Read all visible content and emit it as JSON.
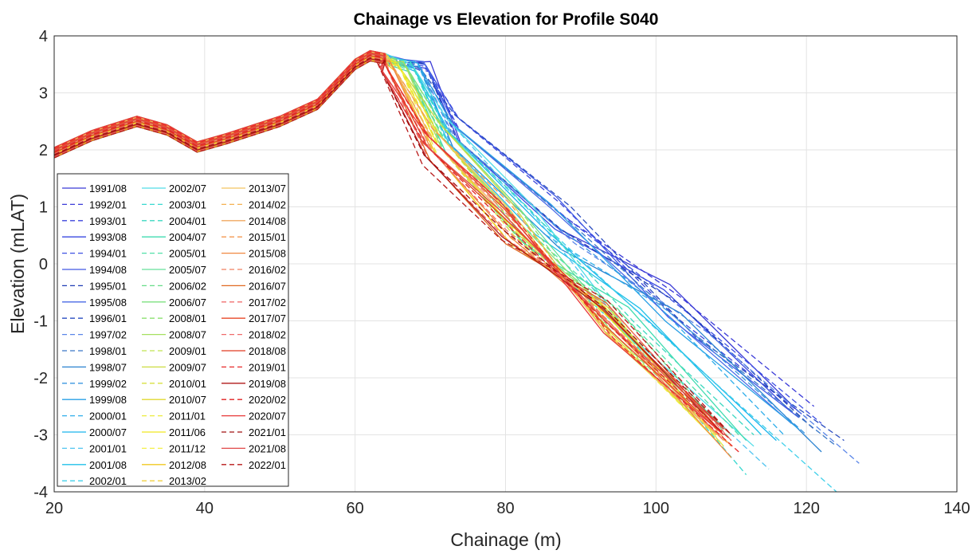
{
  "chart_data": {
    "type": "line",
    "title": "Chainage vs Elevation for Profile S040",
    "xlabel": "Chainage (m)",
    "ylabel": "Elevation (mLAT)",
    "xlim": [
      20,
      140
    ],
    "ylim": [
      -4,
      4
    ],
    "xticks": [
      "20",
      "40",
      "60",
      "80",
      "100",
      "120",
      "140"
    ],
    "yticks": [
      "4",
      "3",
      "2",
      "1",
      "0",
      "-1",
      "-2",
      "-3",
      "-4"
    ],
    "grid": true,
    "legend_position": "bottom-left",
    "legend_columns": 3,
    "series": [
      {
        "name": "1991/08",
        "color": "#3a3ad6",
        "dash": "solid",
        "end": [
          119,
          -2.6
        ]
      },
      {
        "name": "1992/01",
        "color": "#3b3bd8",
        "dash": "dashed",
        "end": [
          121,
          -2.5
        ]
      },
      {
        "name": "1993/01",
        "color": "#3c46dc",
        "dash": "dashed",
        "end": [
          120,
          -2.7
        ]
      },
      {
        "name": "1993/08",
        "color": "#3a48e0",
        "dash": "solid",
        "end": [
          118,
          -2.6
        ]
      },
      {
        "name": "1994/01",
        "color": "#3d50e2",
        "dash": "dashed",
        "end": [
          122,
          -2.8
        ]
      },
      {
        "name": "1994/08",
        "color": "#4058e4",
        "dash": "solid",
        "end": [
          119,
          -2.7
        ]
      },
      {
        "name": "1995/01",
        "color": "#1e3cb4",
        "dash": "dashed",
        "end": [
          121,
          -2.9
        ]
      },
      {
        "name": "1995/08",
        "color": "#4a6ae6",
        "dash": "solid",
        "end": [
          118,
          -2.8
        ]
      },
      {
        "name": "1996/01",
        "color": "#2a4cc0",
        "dash": "dashed",
        "end": [
          125,
          -3.1
        ]
      },
      {
        "name": "1997/02",
        "color": "#5a86e8",
        "dash": "dashed",
        "end": [
          127,
          -3.5
        ]
      },
      {
        "name": "1998/01",
        "color": "#3a78c8",
        "dash": "dashed",
        "end": [
          124,
          -3.2
        ]
      },
      {
        "name": "1998/07",
        "color": "#2a82d0",
        "dash": "solid",
        "end": [
          122,
          -3.3
        ]
      },
      {
        "name": "1999/02",
        "color": "#3a96e0",
        "dash": "dashed",
        "end": [
          120,
          -3.0
        ]
      },
      {
        "name": "1999/08",
        "color": "#2aa0e6",
        "dash": "solid",
        "end": [
          119,
          -2.9
        ]
      },
      {
        "name": "2000/01",
        "color": "#30aeea",
        "dash": "dashed",
        "end": [
          117,
          -3.0
        ]
      },
      {
        "name": "2000/07",
        "color": "#1ab4ee",
        "dash": "solid",
        "end": [
          116,
          -3.1
        ]
      },
      {
        "name": "2001/01",
        "color": "#50c4f0",
        "dash": "dashed",
        "end": [
          115,
          -3.6
        ]
      },
      {
        "name": "2001/08",
        "color": "#20c0e8",
        "dash": "solid",
        "end": [
          114,
          -3.0
        ]
      },
      {
        "name": "2002/01",
        "color": "#40d0ea",
        "dash": "dashed",
        "end": [
          124,
          -4.0
        ]
      },
      {
        "name": "2002/07",
        "color": "#50dce8",
        "dash": "solid",
        "end": [
          113,
          -3.2
        ]
      },
      {
        "name": "2003/01",
        "color": "#38d8d0",
        "dash": "dashed",
        "end": [
          112,
          -3.7
        ]
      },
      {
        "name": "2004/01",
        "color": "#3cd8c0",
        "dash": "dashed",
        "end": [
          113,
          -3.0
        ]
      },
      {
        "name": "2004/07",
        "color": "#40dcb0",
        "dash": "solid",
        "end": [
          112,
          -3.1
        ]
      },
      {
        "name": "2005/01",
        "color": "#50e0a8",
        "dash": "dashed",
        "end": [
          111,
          -3.0
        ]
      },
      {
        "name": "2005/07",
        "color": "#66e09a",
        "dash": "solid",
        "end": [
          110,
          -3.0
        ]
      },
      {
        "name": "2006/02",
        "color": "#66dc88",
        "dash": "dashed",
        "end": [
          110,
          -3.1
        ]
      },
      {
        "name": "2006/07",
        "color": "#7ee080",
        "dash": "solid",
        "end": [
          109,
          -3.0
        ]
      },
      {
        "name": "2008/01",
        "color": "#8ce070",
        "dash": "dashed",
        "end": [
          109,
          -3.1
        ]
      },
      {
        "name": "2008/07",
        "color": "#a6e060",
        "dash": "solid",
        "end": [
          108,
          -3.0
        ]
      },
      {
        "name": "2009/01",
        "color": "#c0e450",
        "dash": "dashed",
        "end": [
          108,
          -3.1
        ]
      },
      {
        "name": "2009/07",
        "color": "#ccdc40",
        "dash": "solid",
        "end": [
          108,
          -3.0
        ]
      },
      {
        "name": "2010/01",
        "color": "#d8e040",
        "dash": "dashed",
        "end": [
          109,
          -3.2
        ]
      },
      {
        "name": "2010/07",
        "color": "#e0d830",
        "dash": "solid",
        "end": [
          108,
          -3.1
        ]
      },
      {
        "name": "2011/01",
        "color": "#ecec3c",
        "dash": "dashed",
        "end": [
          109,
          -3.2
        ]
      },
      {
        "name": "2011/06",
        "color": "#f0e820",
        "dash": "solid",
        "end": [
          108,
          -3.0
        ]
      },
      {
        "name": "2011/12",
        "color": "#f4f048",
        "dash": "dashed",
        "end": [
          108,
          -3.1
        ]
      },
      {
        "name": "2012/08",
        "color": "#f0c820",
        "dash": "solid",
        "end": [
          108,
          -3.0
        ]
      },
      {
        "name": "2013/02",
        "color": "#f0d040",
        "dash": "dashed",
        "end": [
          109,
          -3.1
        ]
      },
      {
        "name": "2013/07",
        "color": "#f4c460",
        "dash": "solid",
        "end": [
          108,
          -3.0
        ]
      },
      {
        "name": "2014/02",
        "color": "#f4b050",
        "dash": "dashed",
        "end": [
          110,
          -3.2
        ]
      },
      {
        "name": "2014/08",
        "color": "#f0a860",
        "dash": "solid",
        "end": [
          109,
          -3.1
        ]
      },
      {
        "name": "2015/01",
        "color": "#f49850",
        "dash": "dashed",
        "end": [
          110,
          -3.2
        ]
      },
      {
        "name": "2015/08",
        "color": "#f08840",
        "dash": "solid",
        "end": [
          110,
          -3.4
        ]
      },
      {
        "name": "2016/02",
        "color": "#f08060",
        "dash": "dashed",
        "end": [
          110,
          -3.0
        ]
      },
      {
        "name": "2016/07",
        "color": "#e06820",
        "dash": "solid",
        "end": [
          109,
          -3.0
        ]
      },
      {
        "name": "2017/02",
        "color": "#f07070",
        "dash": "dashed",
        "end": [
          109,
          -3.1
        ]
      },
      {
        "name": "2017/07",
        "color": "#e84a2a",
        "dash": "solid",
        "end": [
          109,
          -3.0
        ]
      },
      {
        "name": "2018/02",
        "color": "#f06a6a",
        "dash": "dashed",
        "end": [
          110,
          -3.1
        ]
      },
      {
        "name": "2018/08",
        "color": "#e03a20",
        "dash": "solid",
        "end": [
          109,
          -2.9
        ]
      },
      {
        "name": "2019/01",
        "color": "#e82a2a",
        "dash": "dashed",
        "end": [
          111,
          -3.3
        ]
      },
      {
        "name": "2019/08",
        "color": "#b01818",
        "dash": "solid",
        "end": [
          109,
          -3.0
        ]
      },
      {
        "name": "2020/02",
        "color": "#e02020",
        "dash": "dashed",
        "end": [
          110,
          -3.1
        ]
      },
      {
        "name": "2020/07",
        "color": "#e83838",
        "dash": "solid",
        "end": [
          109,
          -3.0
        ]
      },
      {
        "name": "2021/01",
        "color": "#a01010",
        "dash": "dashed",
        "end": [
          110,
          -3.0
        ]
      },
      {
        "name": "2021/08",
        "color": "#e04848",
        "dash": "solid",
        "end": [
          109,
          -2.9
        ]
      },
      {
        "name": "2022/01",
        "color": "#b81818",
        "dash": "dashed",
        "end": [
          110,
          -3.0
        ]
      }
    ]
  }
}
